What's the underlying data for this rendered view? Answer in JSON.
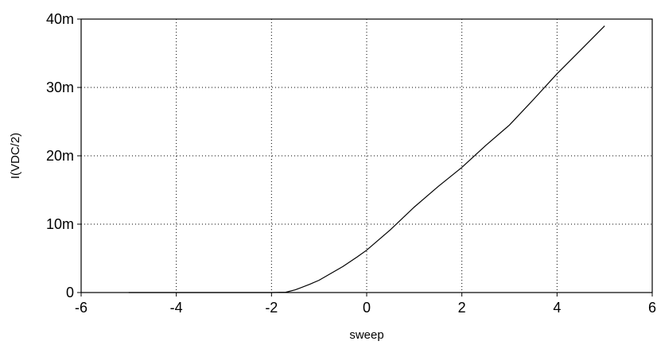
{
  "chart_data": {
    "type": "line",
    "xlabel": "sweep",
    "ylabel": "I(VDC/2)",
    "xlim": [
      -6,
      6
    ],
    "ylim": [
      0,
      0.04
    ],
    "x_ticks": [
      -6,
      -4,
      -2,
      0,
      2,
      4,
      6
    ],
    "x_tick_labels": [
      "-6",
      "-4",
      "-2",
      "0",
      "2",
      "4",
      "6"
    ],
    "y_ticks": [
      0,
      0.01,
      0.02,
      0.03,
      0.04
    ],
    "y_tick_labels": [
      "0",
      "10m",
      "20m",
      "30m",
      "40m"
    ],
    "grid": true,
    "series": [
      {
        "x": [
          -5,
          -4,
          -3,
          -2,
          -1.7,
          -1.5,
          -1.2,
          -1.0,
          -0.8,
          -0.5,
          -0.2,
          0,
          0.5,
          1.0,
          1.5,
          2.0,
          2.5,
          3.0,
          3.5,
          4.0,
          4.5,
          5.0
        ],
        "y": [
          0,
          0,
          0,
          0,
          5e-05,
          0.0004,
          0.0012,
          0.0018,
          0.0026,
          0.0038,
          0.0052,
          0.0062,
          0.0092,
          0.0125,
          0.0155,
          0.0183,
          0.0215,
          0.0245,
          0.0282,
          0.032,
          0.0355,
          0.039
        ]
      }
    ]
  }
}
